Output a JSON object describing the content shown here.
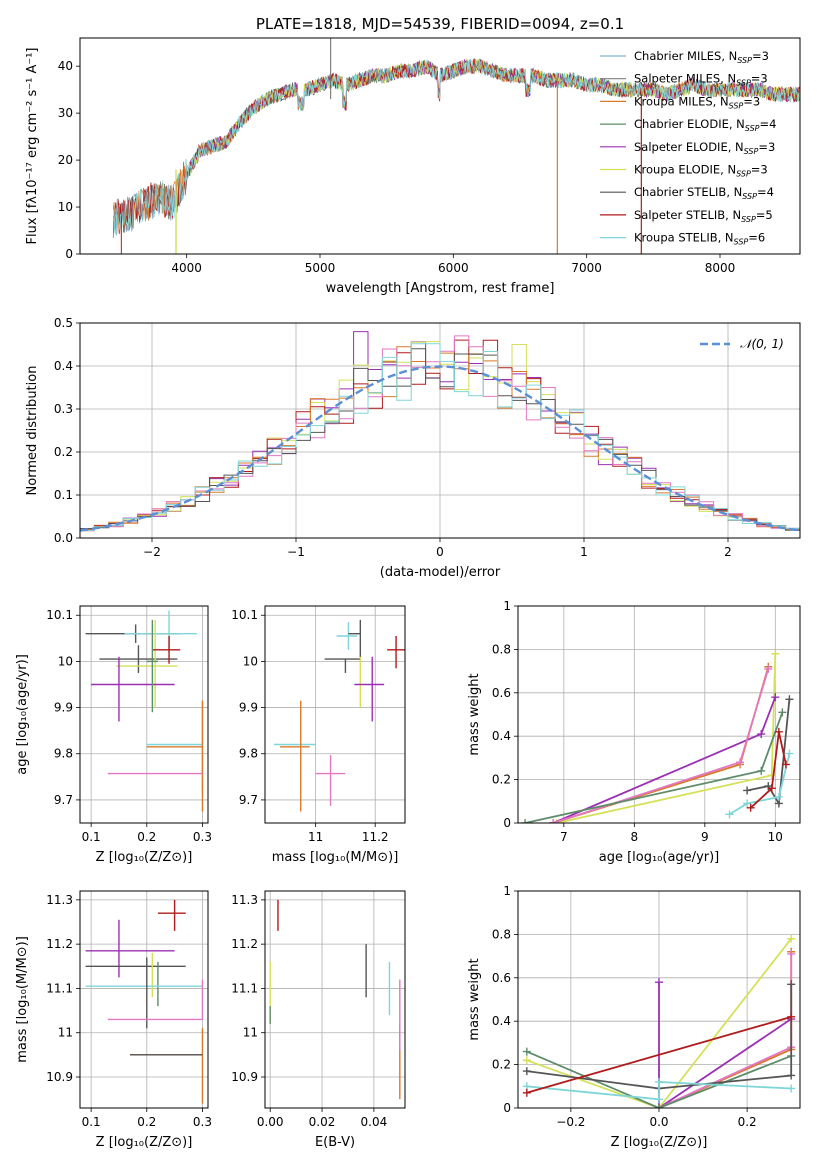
{
  "figure_title": "PLATE=1818, MJD=54539, FIBERID=0094, z=0.1",
  "colors": {
    "Chabrier MILES": "#7fb3d5",
    "Salpeter MILES": "#808080",
    "Kroupa MILES": "#d97a2b",
    "Chabrier ELODIE": "#5e8c6a",
    "Salpeter ELODIE": "#9b30b4",
    "Kroupa ELODIE": "#d4e157",
    "Chabrier STELIB": "#555555",
    "Salpeter STELIB": "#b01c1c",
    "Kroupa STELIB": "#7fd6d9",
    "pink": "#e377c2",
    "gauss": "#5b8fd6"
  },
  "chart_data": [
    {
      "id": "spectrum",
      "type": "line",
      "xlabel": "wavelength [Angstrom, rest frame]",
      "ylabel": "Flux [f$_\\lambda$10$^{-17}$ erg cm$^{-2}$ s$^{-1}$ A$^{-1}$]",
      "ylabel_text": "Flux [fλ10⁻¹⁷ erg cm⁻² s⁻¹ A⁻¹]",
      "xlim": [
        3200,
        8600
      ],
      "ylim": [
        0,
        46
      ],
      "xticks": [
        4000,
        5000,
        6000,
        7000,
        8000
      ],
      "yticks": [
        0,
        10,
        20,
        30,
        40
      ],
      "shape": {
        "x": [
          3500,
          3600,
          3700,
          3800,
          3900,
          4000,
          4100,
          4200,
          4300,
          4400,
          4500,
          4600,
          4700,
          4800,
          4900,
          5000,
          5100,
          5200,
          5300,
          5400,
          5500,
          5600,
          5700,
          5800,
          5900,
          6000,
          6100,
          6200,
          6300,
          6400,
          6500,
          6600,
          6700,
          6800,
          6900,
          7000,
          7100,
          7200,
          7300,
          7400,
          7500,
          7600,
          7700,
          7800,
          7900,
          8000,
          8100,
          8200,
          8300,
          8400,
          8500
        ],
        "y": [
          8,
          9,
          11,
          12,
          11,
          17,
          22,
          23,
          24,
          28,
          31,
          33,
          34,
          35,
          35,
          36,
          37,
          36,
          37,
          38,
          38,
          39,
          39,
          40,
          38,
          39,
          40,
          40,
          39,
          38,
          38,
          38,
          37,
          37,
          37,
          36,
          36,
          35,
          35,
          35,
          35,
          34,
          35,
          36,
          35,
          35,
          35,
          35,
          35,
          34,
          34
        ]
      },
      "legend": [
        {
          "label": "Chabrier MILES, N",
          "sub": "SSP",
          "val": "=3",
          "color": "Chabrier MILES"
        },
        {
          "label": "Salpeter MILES, N",
          "sub": "SSP",
          "val": "=3",
          "color": "Salpeter MILES"
        },
        {
          "label": "Kroupa MILES, N",
          "sub": "SSP",
          "val": "=3",
          "color": "Kroupa MILES"
        },
        {
          "label": "Chabrier ELODIE, N",
          "sub": "SSP",
          "val": "=4",
          "color": "Chabrier ELODIE"
        },
        {
          "label": "Salpeter ELODIE, N",
          "sub": "SSP",
          "val": "=3",
          "color": "Salpeter ELODIE"
        },
        {
          "label": "Kroupa ELODIE, N",
          "sub": "SSP",
          "val": "=3",
          "color": "Kroupa ELODIE"
        },
        {
          "label": "Chabrier STELIB, N",
          "sub": "SSP",
          "val": "=4",
          "color": "Chabrier STELIB"
        },
        {
          "label": "Salpeter STELIB, N",
          "sub": "SSP",
          "val": "=5",
          "color": "Salpeter STELIB"
        },
        {
          "label": "Kroupa STELIB, N",
          "sub": "SSP",
          "val": "=6",
          "color": "Kroupa STELIB"
        }
      ]
    },
    {
      "id": "residuals",
      "type": "histogram",
      "xlabel": "(data-model)/error",
      "ylabel": "Normed distribution",
      "xlim": [
        -2.5,
        2.5
      ],
      "ylim": [
        0,
        0.5
      ],
      "xticks": [
        -2,
        -1,
        0,
        1,
        2
      ],
      "xtick_labels": [
        "−2",
        "−1",
        "0",
        "1",
        "2"
      ],
      "yticks": [
        0.0,
        0.1,
        0.2,
        0.3,
        0.4,
        0.5
      ],
      "ytick_labels": [
        "0.0",
        "0.1",
        "0.2",
        "0.3",
        "0.4",
        "0.5"
      ],
      "bin_width": 0.1,
      "legend_label": "𝒩(0, 1)",
      "gauss": {
        "mean": 0,
        "sigma": 1
      },
      "series": [
        {
          "color": "Salpeter ELODIE",
          "peak": 0.48,
          "peak_x": -0.55
        },
        {
          "color": "Kroupa ELODIE",
          "peak": 0.45,
          "peak_x": 0.55
        },
        {
          "color": "Salpeter STELIB",
          "peak": 0.46,
          "peak_x": 0.35
        },
        {
          "color": "Kroupa MILES",
          "peak": 0.43,
          "peak_x": 0.05
        },
        {
          "color": "pink",
          "peak": 0.47,
          "peak_x": 0.15
        },
        {
          "color": "Chabrier STELIB",
          "peak": 0.44,
          "peak_x": -0.1
        },
        {
          "color": "Kroupa STELIB",
          "peak": 0.42,
          "peak_x": -0.35
        }
      ]
    },
    {
      "id": "Z_vs_age",
      "type": "errorbar",
      "xlabel": "Z [log₁₀(Z/Z⊙)]",
      "ylabel": "age  [log₁₀(age/yr)]",
      "xlim": [
        0.08,
        0.31
      ],
      "ylim": [
        9.65,
        10.12
      ],
      "xticks": [
        0.1,
        0.2,
        0.3
      ],
      "yticks": [
        9.7,
        9.8,
        9.9,
        10.0,
        10.1
      ],
      "points": [
        {
          "x": 0.18,
          "y": 10.06,
          "xerr": [
            0.09,
            0.08
          ],
          "yerr": [
            0.02,
            0.02
          ],
          "color": "Chabrier STELIB"
        },
        {
          "x": 0.24,
          "y": 10.06,
          "xerr": [
            0.08,
            0.05
          ],
          "yerr": [
            0.04,
            0.05
          ],
          "color": "Kroupa STELIB"
        },
        {
          "x": 0.185,
          "y": 10.005,
          "xerr": [
            0.07,
            0.07
          ],
          "yerr": [
            0.03,
            0.03
          ],
          "color": "Chabrier STELIB"
        },
        {
          "x": 0.215,
          "y": 9.99,
          "xerr": [
            0.07,
            0.04
          ],
          "yerr": [
            0.09,
            0.1
          ],
          "color": "Kroupa ELODIE"
        },
        {
          "x": 0.24,
          "y": 10.025,
          "xerr": [
            0.03,
            0.02
          ],
          "yerr": [
            0.03,
            0.03
          ],
          "color": "Salpeter STELIB"
        },
        {
          "x": 0.15,
          "y": 9.95,
          "xerr": [
            0.05,
            0.1
          ],
          "yerr": [
            0.08,
            0.06
          ],
          "color": "Salpeter ELODIE"
        },
        {
          "x": 0.21,
          "y": 10.0,
          "xerr": [
            0.01,
            0.01
          ],
          "yerr": [
            0.11,
            0.09
          ],
          "color": "Chabrier ELODIE"
        },
        {
          "x": 0.3,
          "y": 9.82,
          "xerr": [
            0.1,
            0.0
          ],
          "yerr": [
            0.1,
            0.09
          ],
          "color": "Kroupa STELIB"
        },
        {
          "x": 0.3,
          "y": 9.815,
          "xerr": [
            0.1,
            0.0
          ],
          "yerr": [
            0.14,
            0.1
          ],
          "color": "Kroupa MILES"
        },
        {
          "x": 0.3,
          "y": 9.757,
          "xerr": [
            0.17,
            0.0
          ],
          "yerr": [
            0.0,
            0.0
          ],
          "color": "pink"
        }
      ]
    },
    {
      "id": "mass_vs_age",
      "type": "errorbar",
      "xlabel": "mass [log₁₀(M/M⊙)]",
      "ylabel": "",
      "xlim": [
        10.83,
        11.3
      ],
      "ylim": [
        9.65,
        10.12
      ],
      "xticks": [
        11.0,
        11.2
      ],
      "yticks": [
        9.7,
        9.8,
        9.9,
        10.0,
        10.1
      ],
      "points": [
        {
          "x": 11.11,
          "y": 10.055,
          "xerr": [
            0.04,
            0.03
          ],
          "yerr": [
            0.03,
            0.03
          ],
          "color": "Kroupa STELIB"
        },
        {
          "x": 11.15,
          "y": 10.06,
          "xerr": [
            0.04,
            0.0
          ],
          "yerr": [
            0.06,
            0.03
          ],
          "color": "Chabrier STELIB"
        },
        {
          "x": 11.27,
          "y": 10.025,
          "xerr": [
            0.03,
            0.03
          ],
          "yerr": [
            0.04,
            0.03
          ],
          "color": "Salpeter STELIB"
        },
        {
          "x": 11.1,
          "y": 10.005,
          "xerr": [
            0.07,
            0.05
          ],
          "yerr": [
            0.03,
            0.0
          ],
          "color": "Chabrier STELIB"
        },
        {
          "x": 11.15,
          "y": 9.99,
          "xerr": [
            0.0,
            0.0
          ],
          "yerr": [
            0.09,
            0.02
          ],
          "color": "Kroupa ELODIE"
        },
        {
          "x": 11.19,
          "y": 9.95,
          "xerr": [
            0.06,
            0.04
          ],
          "yerr": [
            0.08,
            0.06
          ],
          "color": "Salpeter ELODIE"
        },
        {
          "x": 10.93,
          "y": 9.82,
          "xerr": [
            0.07,
            0.07
          ],
          "yerr": [
            0.0,
            0.0
          ],
          "color": "Kroupa STELIB"
        },
        {
          "x": 10.95,
          "y": 9.815,
          "xerr": [
            0.07,
            0.03
          ],
          "yerr": [
            0.14,
            0.1
          ],
          "color": "Kroupa MILES"
        },
        {
          "x": 11.05,
          "y": 9.757,
          "xerr": [
            0.05,
            0.05
          ],
          "yerr": [
            0.07,
            0.04
          ],
          "color": "pink"
        }
      ]
    },
    {
      "id": "age_vs_weight",
      "type": "line",
      "xlabel": "age  [log₁₀(age/yr)]",
      "ylabel": "mass weight",
      "xlim": [
        6.35,
        10.35
      ],
      "ylim": [
        0,
        1
      ],
      "xticks": [
        7,
        8,
        9,
        10
      ],
      "yticks": [
        0.0,
        0.2,
        0.4,
        0.6,
        0.8,
        1.0
      ],
      "series": [
        {
          "color": "Kroupa ELODIE",
          "x": [
            6.9,
            9.95,
            10.0
          ],
          "y": [
            0.0,
            0.22,
            0.78
          ]
        },
        {
          "color": "Salpeter ELODIE",
          "x": [
            6.85,
            9.8,
            10.0
          ],
          "y": [
            0.0,
            0.41,
            0.58
          ]
        },
        {
          "color": "Kroupa MILES",
          "x": [
            6.85,
            9.5,
            9.9
          ],
          "y": [
            0.0,
            0.27,
            0.72
          ]
        },
        {
          "color": "pink",
          "x": [
            6.85,
            9.5,
            9.9
          ],
          "y": [
            0.0,
            0.28,
            0.71
          ]
        },
        {
          "color": "Chabrier ELODIE",
          "x": [
            6.45,
            9.8,
            10.1
          ],
          "y": [
            0.0,
            0.24,
            0.51
          ]
        },
        {
          "color": "Chabrier STELIB",
          "x": [
            9.6,
            9.9,
            10.05,
            10.2
          ],
          "y": [
            0.15,
            0.17,
            0.09,
            0.57
          ]
        },
        {
          "color": "Kroupa STELIB",
          "x": [
            9.35,
            9.6,
            10.05,
            10.2
          ],
          "y": [
            0.04,
            0.09,
            0.12,
            0.32
          ]
        },
        {
          "color": "Salpeter STELIB",
          "x": [
            9.65,
            9.95,
            10.05,
            10.15
          ],
          "y": [
            0.07,
            0.16,
            0.42,
            0.27
          ]
        }
      ]
    },
    {
      "id": "Z_vs_mass",
      "type": "errorbar",
      "xlabel": "Z [log₁₀(Z/Z⊙)]",
      "ylabel": "mass [log₁₀(M/M⊙)]",
      "xlim": [
        0.08,
        0.31
      ],
      "ylim": [
        10.83,
        11.32
      ],
      "xticks": [
        0.1,
        0.2,
        0.3
      ],
      "yticks": [
        10.9,
        11.0,
        11.1,
        11.2,
        11.3
      ],
      "points": [
        {
          "x": 0.25,
          "y": 11.27,
          "xerr": [
            0.03,
            0.02
          ],
          "yerr": [
            0.04,
            0.03
          ],
          "color": "Salpeter STELIB"
        },
        {
          "x": 0.15,
          "y": 11.185,
          "xerr": [
            0.06,
            0.1
          ],
          "yerr": [
            0.06,
            0.07
          ],
          "color": "Salpeter ELODIE"
        },
        {
          "x": 0.18,
          "y": 11.15,
          "xerr": [
            0.09,
            0.09
          ],
          "yerr": [
            0.0,
            0.0
          ],
          "color": "Chabrier STELIB"
        },
        {
          "x": 0.21,
          "y": 11.14,
          "xerr": [
            0.0,
            0.0
          ],
          "yerr": [
            0.06,
            0.04
          ],
          "color": "Kroupa ELODIE"
        },
        {
          "x": 0.22,
          "y": 11.12,
          "xerr": [
            0.0,
            0.0
          ],
          "yerr": [
            0.06,
            0.04
          ],
          "color": "Chabrier ELODIE"
        },
        {
          "x": 0.2,
          "y": 11.105,
          "xerr": [
            0.11,
            0.1
          ],
          "yerr": [
            0.0,
            0.0
          ],
          "color": "Kroupa STELIB"
        },
        {
          "x": 0.2,
          "y": 11.1,
          "xerr": [
            0.0,
            0.0
          ],
          "yerr": [
            0.09,
            0.07
          ],
          "color": "Chabrier STELIB"
        },
        {
          "x": 0.3,
          "y": 11.03,
          "xerr": [
            0.17,
            0.0
          ],
          "yerr": [
            0.0,
            0.09
          ],
          "color": "pink"
        },
        {
          "x": 0.3,
          "y": 10.95,
          "xerr": [
            0.13,
            0.0
          ],
          "yerr": [
            0.11,
            0.06
          ],
          "color": "Kroupa MILES"
        },
        {
          "x": 0.3,
          "y": 10.95,
          "xerr": [
            0.13,
            0.0
          ],
          "yerr": [
            0.0,
            0.0
          ],
          "color": "Chabrier STELIB"
        }
      ]
    },
    {
      "id": "ebv_vs_mass",
      "type": "errorbar",
      "xlabel": "E(B-V)",
      "ylabel": "",
      "xlim": [
        -0.002,
        0.052
      ],
      "ylim": [
        10.83,
        11.32
      ],
      "xticks": [
        0.0,
        0.02,
        0.04
      ],
      "xtick_labels": [
        "0.00",
        "0.02",
        "0.04"
      ],
      "yticks": [
        10.9,
        11.0,
        11.1,
        11.2,
        11.3
      ],
      "points": [
        {
          "x": 0.003,
          "y": 11.26,
          "yerr": [
            0.03,
            0.04
          ],
          "color": "Salpeter STELIB"
        },
        {
          "x": 0.0,
          "y": 11.09,
          "yerr": [
            0.07,
            0.07
          ],
          "color": "Kroupa ELODIE"
        },
        {
          "x": 0.0,
          "y": 11.04,
          "yerr": [
            0.02,
            0.02
          ],
          "color": "Chabrier ELODIE"
        },
        {
          "x": 0.037,
          "y": 11.14,
          "yerr": [
            0.06,
            0.06
          ],
          "color": "Chabrier STELIB"
        },
        {
          "x": 0.046,
          "y": 11.1,
          "yerr": [
            0.06,
            0.06
          ],
          "color": "Kroupa STELIB"
        },
        {
          "x": 0.05,
          "y": 10.93,
          "yerr": [
            0.08,
            0.09
          ],
          "color": "Kroupa MILES"
        },
        {
          "x": 0.05,
          "y": 11.04,
          "yerr": [
            0.08,
            0.08
          ],
          "color": "pink"
        }
      ]
    },
    {
      "id": "Z_vs_weight",
      "type": "line",
      "xlabel": "Z [log₁₀(Z/Z⊙)]",
      "ylabel": "mass weight",
      "xlim": [
        -0.32,
        0.32
      ],
      "ylim": [
        0,
        1
      ],
      "xticks": [
        -0.2,
        0.0,
        0.2
      ],
      "xtick_labels": [
        "−0.2",
        "0.0",
        "0.2"
      ],
      "yticks": [
        0.0,
        0.2,
        0.4,
        0.6,
        0.8,
        1.0
      ],
      "series": [
        {
          "color": "Kroupa ELODIE",
          "x": [
            -0.3,
            0.0,
            0.3
          ],
          "y": [
            0.22,
            0.0,
            0.78
          ]
        },
        {
          "color": "Salpeter ELODIE",
          "x": [
            0.0,
            0.0,
            0.3
          ],
          "y": [
            0.58,
            0.0,
            0.41
          ]
        },
        {
          "color": "Kroupa MILES",
          "x": [
            0.0,
            0.3,
            0.3
          ],
          "y": [
            0.0,
            0.27,
            0.72
          ]
        },
        {
          "color": "pink",
          "x": [
            0.0,
            0.3,
            0.3
          ],
          "y": [
            0.0,
            0.28,
            0.71
          ]
        },
        {
          "color": "Chabrier ELODIE",
          "x": [
            -0.3,
            0.0,
            0.3
          ],
          "y": [
            0.26,
            0.0,
            0.24
          ]
        },
        {
          "color": "Chabrier STELIB",
          "x": [
            -0.3,
            0.0,
            0.3,
            0.3
          ],
          "y": [
            0.17,
            0.09,
            0.15,
            0.57
          ]
        },
        {
          "color": "Kroupa STELIB",
          "x": [
            -0.3,
            0.0,
            0.0,
            0.3
          ],
          "y": [
            0.1,
            0.04,
            0.12,
            0.09
          ]
        },
        {
          "color": "Salpeter STELIB",
          "x": [
            -0.3,
            0.3
          ],
          "y": [
            0.07,
            0.42
          ]
        }
      ]
    }
  ]
}
